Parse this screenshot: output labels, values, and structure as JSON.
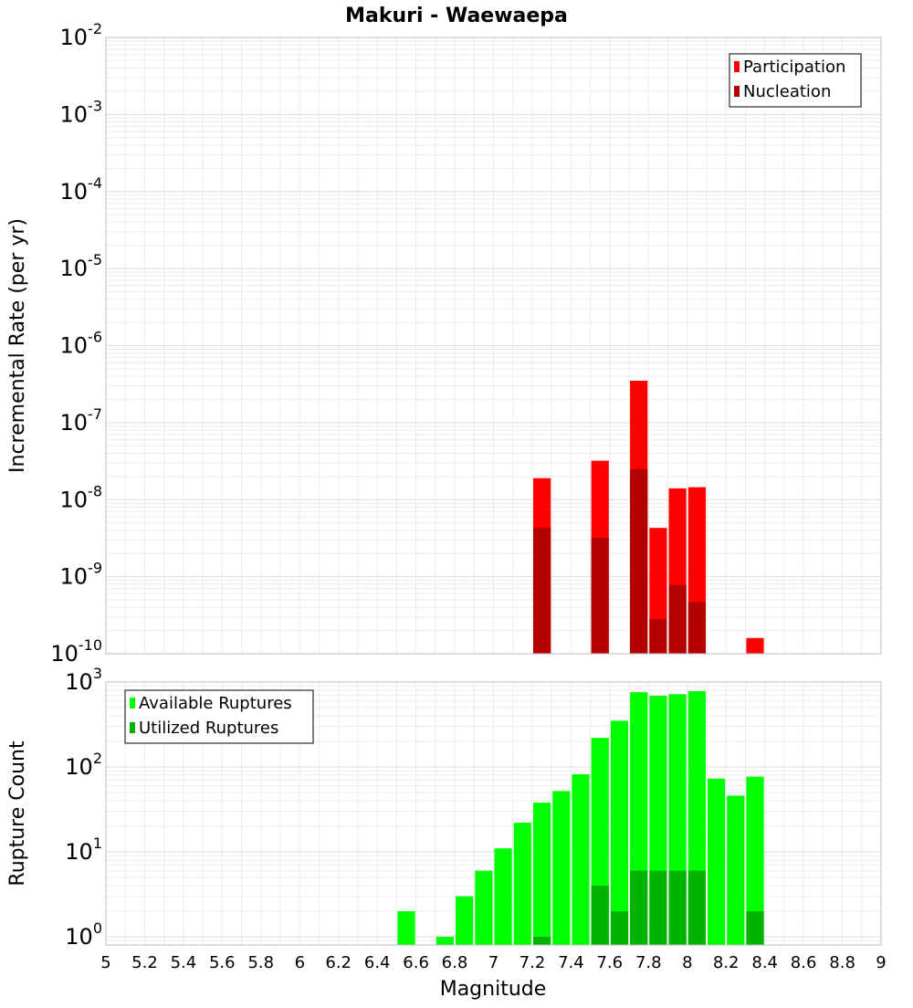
{
  "title": "Makuri - Waewaepa",
  "xlabel": "Magnitude",
  "colors": {
    "participation": "#ff0000",
    "nucleation": "#b30000",
    "available": "#00ff00",
    "utilized": "#00b300",
    "grid": "#ebebeb",
    "frame": "#bdbdbd"
  },
  "chart_data": [
    {
      "type": "bar",
      "ylabel": "Incremental Rate (per yr)",
      "yscale": "log",
      "ylim": [
        1e-10,
        0.01
      ],
      "xlim": [
        5,
        9
      ],
      "bar_width": 0.1,
      "y_tick_bases": [
        "10",
        "10",
        "10",
        "10",
        "10",
        "10",
        "10",
        "10",
        "10"
      ],
      "y_tick_exps": [
        "-10",
        "-9",
        "-8",
        "-7",
        "-6",
        "-5",
        "-4",
        "-3",
        "-2"
      ],
      "legend": [
        "Participation",
        "Nucleation"
      ],
      "legend_position": "top-right",
      "series": [
        {
          "name": "Participation",
          "points": [
            {
              "x": 7.25,
              "y": 1.9e-08
            },
            {
              "x": 7.55,
              "y": 3.2e-08
            },
            {
              "x": 7.75,
              "y": 3.5e-07
            },
            {
              "x": 7.85,
              "y": 4.3e-09
            },
            {
              "x": 7.95,
              "y": 1.4e-08
            },
            {
              "x": 8.05,
              "y": 1.45e-08
            },
            {
              "x": 8.35,
              "y": 1.6e-10
            }
          ]
        },
        {
          "name": "Nucleation",
          "points": [
            {
              "x": 7.25,
              "y": 4.3e-09
            },
            {
              "x": 7.55,
              "y": 3.2e-09
            },
            {
              "x": 7.75,
              "y": 2.5e-08
            },
            {
              "x": 7.85,
              "y": 2.8e-10
            },
            {
              "x": 7.95,
              "y": 7.8e-10
            },
            {
              "x": 8.05,
              "y": 4.7e-10
            }
          ]
        }
      ]
    },
    {
      "type": "bar",
      "ylabel": "Rupture Count",
      "xlabel": "Magnitude",
      "yscale": "log",
      "ylim": [
        0.8,
        1000
      ],
      "xlim": [
        5,
        9
      ],
      "bar_width": 0.1,
      "x_ticks": [
        "5",
        "5.2",
        "5.4",
        "5.6",
        "5.8",
        "6",
        "6.2",
        "6.4",
        "6.6",
        "6.8",
        "7",
        "7.2",
        "7.4",
        "7.6",
        "7.8",
        "8",
        "8.2",
        "8.4",
        "8.6",
        "8.8",
        "9"
      ],
      "y_tick_bases": [
        "10",
        "10",
        "10",
        "10"
      ],
      "y_tick_exps": [
        "0",
        "1",
        "2",
        "3"
      ],
      "legend": [
        "Available Ruptures",
        "Utilized Ruptures"
      ],
      "legend_position": "top-left",
      "series": [
        {
          "name": "Available Ruptures",
          "points": [
            {
              "x": 6.55,
              "y": 2
            },
            {
              "x": 6.75,
              "y": 1
            },
            {
              "x": 6.85,
              "y": 3
            },
            {
              "x": 6.95,
              "y": 6
            },
            {
              "x": 7.05,
              "y": 11
            },
            {
              "x": 7.15,
              "y": 22
            },
            {
              "x": 7.25,
              "y": 38
            },
            {
              "x": 7.35,
              "y": 52
            },
            {
              "x": 7.45,
              "y": 82
            },
            {
              "x": 7.55,
              "y": 220
            },
            {
              "x": 7.65,
              "y": 350
            },
            {
              "x": 7.75,
              "y": 760
            },
            {
              "x": 7.85,
              "y": 690
            },
            {
              "x": 7.95,
              "y": 720
            },
            {
              "x": 8.05,
              "y": 780
            },
            {
              "x": 8.15,
              "y": 73
            },
            {
              "x": 8.25,
              "y": 46
            },
            {
              "x": 8.35,
              "y": 77
            }
          ]
        },
        {
          "name": "Utilized Ruptures",
          "points": [
            {
              "x": 7.25,
              "y": 1
            },
            {
              "x": 7.55,
              "y": 4
            },
            {
              "x": 7.65,
              "y": 2
            },
            {
              "x": 7.75,
              "y": 6
            },
            {
              "x": 7.85,
              "y": 6
            },
            {
              "x": 7.95,
              "y": 6
            },
            {
              "x": 8.05,
              "y": 6
            },
            {
              "x": 8.35,
              "y": 2
            }
          ]
        }
      ]
    }
  ]
}
